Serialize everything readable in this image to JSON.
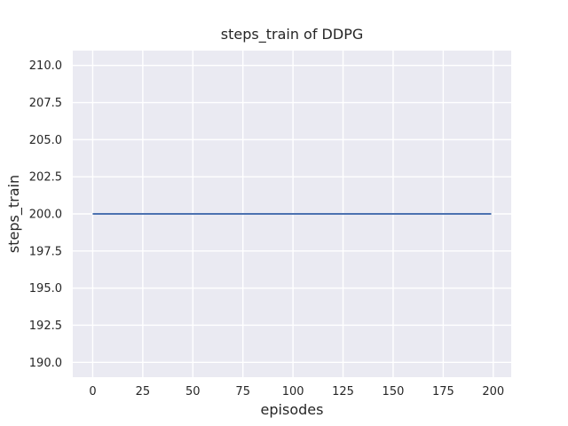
{
  "chart_data": {
    "type": "line",
    "title": "steps_train of DDPG",
    "xlabel": "episodes",
    "ylabel": "steps_train",
    "xlim": [
      -9.95,
      208.95
    ],
    "ylim": [
      189.0,
      211.0
    ],
    "x_ticks": [
      0,
      25,
      50,
      75,
      100,
      125,
      150,
      175,
      200
    ],
    "x_tick_labels": [
      "0",
      "25",
      "50",
      "75",
      "100",
      "125",
      "150",
      "175",
      "200"
    ],
    "y_ticks": [
      190.0,
      192.5,
      195.0,
      197.5,
      200.0,
      202.5,
      205.0,
      207.5,
      210.0
    ],
    "y_tick_labels": [
      "190.0",
      "192.5",
      "195.0",
      "197.5",
      "200.0",
      "202.5",
      "205.0",
      "207.5",
      "210.0"
    ],
    "grid": true,
    "legend": "none",
    "series": [
      {
        "name": "steps_train",
        "x": [
          0,
          199
        ],
        "y": [
          200,
          200
        ],
        "constant_value": 200,
        "color": "#4C72B0",
        "linewidth": 2
      }
    ],
    "colors": {
      "figure_background": "#FFFFFF",
      "axes_background": "#EAEAF2",
      "grid": "#FFFFFF",
      "text": "#262626",
      "line": "#4C72B0"
    }
  }
}
